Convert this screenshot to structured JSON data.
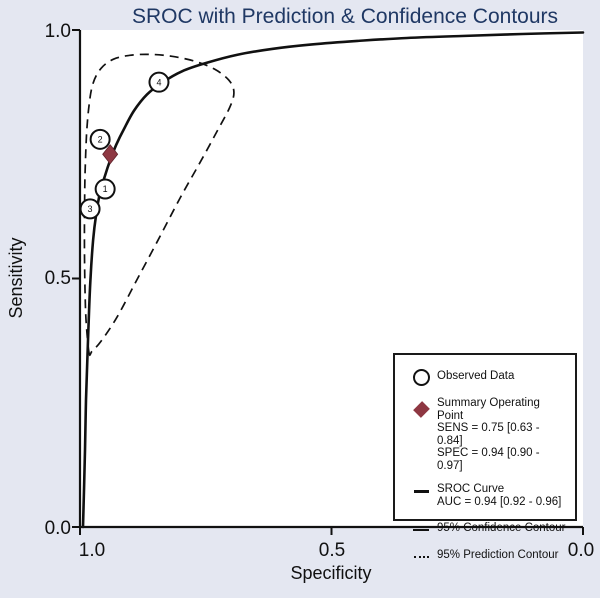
{
  "chart_data": {
    "type": "line",
    "title": "SROC with Prediction & Confidence Contours",
    "xlabel": "Specificity",
    "ylabel": "Sensitivity",
    "xlim": [
      1.0,
      0.0
    ],
    "ylim": [
      0.0,
      1.0
    ],
    "grid": false,
    "legend_position": "lower right",
    "x_ticks": [
      1.0,
      0.5,
      0.0
    ],
    "y_ticks": [
      1.0,
      0.5,
      0.0
    ],
    "x_tick_labels": [
      "1.0",
      "0.5",
      "0.0"
    ],
    "y_tick_labels": [
      "1.0",
      "0.5",
      "0.0"
    ],
    "studies": [
      {
        "label": "1",
        "spec": 0.95,
        "sens": 0.68
      },
      {
        "label": "2",
        "spec": 0.96,
        "sens": 0.78
      },
      {
        "label": "3",
        "spec": 0.98,
        "sens": 0.64
      },
      {
        "label": "4",
        "spec": 0.843,
        "sens": 0.895
      }
    ],
    "summary_point": {
      "spec": 0.94,
      "sens": 0.75,
      "sens_ci": [
        0.63,
        0.84
      ],
      "spec_ci": [
        0.9,
        0.97
      ]
    },
    "auc": {
      "value": 0.94,
      "ci": [
        0.92,
        0.96
      ]
    },
    "sroc_curve": [
      [
        0.994,
        0.0
      ],
      [
        0.99,
        0.155
      ],
      [
        0.988,
        0.256
      ],
      [
        0.985,
        0.346
      ],
      [
        0.982,
        0.437
      ],
      [
        0.979,
        0.503
      ],
      [
        0.974,
        0.577
      ],
      [
        0.968,
        0.628
      ],
      [
        0.96,
        0.674
      ],
      [
        0.95,
        0.708
      ],
      [
        0.94,
        0.738
      ],
      [
        0.928,
        0.769
      ],
      [
        0.913,
        0.8
      ],
      [
        0.893,
        0.837
      ],
      [
        0.867,
        0.87
      ],
      [
        0.837,
        0.894
      ],
      [
        0.797,
        0.917
      ],
      [
        0.748,
        0.934
      ],
      [
        0.688,
        0.95
      ],
      [
        0.618,
        0.962
      ],
      [
        0.539,
        0.971
      ],
      [
        0.449,
        0.978
      ],
      [
        0.35,
        0.984
      ],
      [
        0.241,
        0.988
      ],
      [
        0.121,
        0.992
      ],
      [
        0.0,
        0.995
      ]
    ],
    "contour_loop": [
      [
        0.982,
        0.35
      ],
      [
        0.988,
        0.417
      ],
      [
        0.99,
        0.477
      ],
      [
        0.991,
        0.547
      ],
      [
        0.991,
        0.628
      ],
      [
        0.99,
        0.708
      ],
      [
        0.987,
        0.789
      ],
      [
        0.982,
        0.849
      ],
      [
        0.974,
        0.893
      ],
      [
        0.958,
        0.923
      ],
      [
        0.934,
        0.941
      ],
      [
        0.901,
        0.949
      ],
      [
        0.861,
        0.951
      ],
      [
        0.817,
        0.947
      ],
      [
        0.771,
        0.937
      ],
      [
        0.732,
        0.921
      ],
      [
        0.704,
        0.899
      ],
      [
        0.694,
        0.875
      ],
      [
        0.702,
        0.845
      ],
      [
        0.726,
        0.799
      ],
      [
        0.761,
        0.734
      ],
      [
        0.801,
        0.662
      ],
      [
        0.845,
        0.577
      ],
      [
        0.887,
        0.497
      ],
      [
        0.926,
        0.423
      ],
      [
        0.958,
        0.374
      ],
      [
        0.976,
        0.354
      ]
    ]
  },
  "legend": {
    "items": [
      {
        "label": "Observed Data"
      },
      {
        "label": "Summary Operating Point",
        "line2": "SENS = 0.75 [0.63 - 0.84]",
        "line3": "SPEC = 0.94 [0.90 - 0.97]"
      },
      {
        "label": "SROC Curve",
        "line2": "AUC = 0.94 [0.92 - 0.96]"
      },
      {
        "label": "95% Confidence Contour"
      },
      {
        "label": "95% Prediction Contour"
      }
    ]
  },
  "colors": {
    "background": "#E4E7F1",
    "plot_background": "#FFFFFF",
    "title": "#1F3864",
    "line": "#111111",
    "summary_diamond": "#8E3742"
  }
}
